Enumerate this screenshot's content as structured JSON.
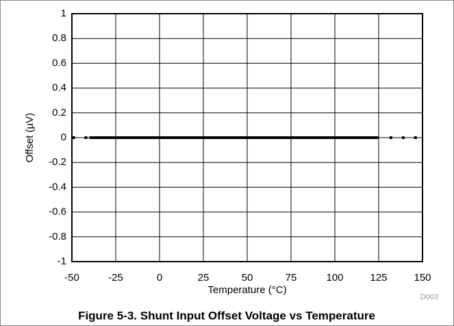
{
  "chart_data": {
    "type": "line",
    "title": "Figure 5-3. Shunt Input Offset Voltage vs Temperature",
    "code": "D003",
    "xlabel": "Temperature (°C)",
    "ylabel": "Offset (µV)",
    "xlim": [
      -50,
      150
    ],
    "xticks": [
      -50,
      -25,
      0,
      25,
      50,
      75,
      100,
      125,
      150
    ],
    "ylim": [
      -1,
      1
    ],
    "yticks": [
      1,
      0.8,
      0.6,
      0.4,
      0.2,
      0,
      -0.2,
      -0.4,
      -0.6,
      -0.8,
      -1
    ],
    "grid": true,
    "series": [
      {
        "color": "#000000",
        "style": "line",
        "x": [
          -40,
          125
        ],
        "values": [
          0,
          0
        ]
      },
      {
        "color": "#000000",
        "style": "markers",
        "x": [
          -49,
          -42,
          132,
          139,
          146
        ],
        "values": [
          0,
          0,
          0,
          0,
          0
        ]
      }
    ]
  }
}
